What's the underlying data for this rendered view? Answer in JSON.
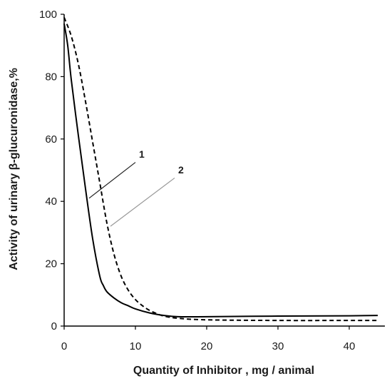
{
  "chart_data": {
    "type": "line",
    "title": "",
    "xlabel": "Quantity of Inhibitor , mg / animal",
    "ylabel": "Activity of urinary β-glucuronidase,%",
    "xlim": [
      0,
      45
    ],
    "ylim": [
      0,
      100
    ],
    "xticks": [
      0,
      10,
      20,
      30,
      40
    ],
    "yticks": [
      0,
      20,
      40,
      60,
      80,
      100
    ],
    "grid": false,
    "legend": "none",
    "series": [
      {
        "label": "1",
        "style": "solid",
        "color": "#000000",
        "x": [
          0,
          0.5,
          1,
          2,
          3,
          4,
          5,
          5.5,
          6,
          7,
          8,
          9,
          10,
          12,
          14,
          16,
          20,
          30,
          40,
          44
        ],
        "y": [
          97,
          90,
          79,
          61,
          44,
          28,
          16,
          13,
          11,
          9,
          7.5,
          6.5,
          5.5,
          4.2,
          3.4,
          3,
          3,
          3.2,
          3.3,
          3.4
        ]
      },
      {
        "label": "2",
        "style": "dashed",
        "color": "#000000",
        "x": [
          0,
          1,
          2,
          3,
          4,
          5,
          6,
          7,
          8,
          9,
          10,
          11,
          12,
          13,
          14,
          16,
          20,
          30,
          40,
          44
        ],
        "y": [
          99,
          93,
          84,
          72,
          59,
          46,
          33,
          23,
          16,
          11.5,
          8.5,
          6.5,
          5,
          4,
          3.2,
          2.5,
          2,
          1.8,
          1.8,
          1.8
        ]
      }
    ],
    "annotations": [
      {
        "text": "1",
        "leader_from": [
          3.5,
          41
        ],
        "leader_to": [
          10,
          52.5
        ],
        "text_at": [
          10.5,
          54
        ]
      },
      {
        "text": "2",
        "leader_from": [
          6.5,
          32
        ],
        "leader_to": [
          15.5,
          47.5
        ],
        "text_at": [
          16,
          49
        ]
      }
    ]
  }
}
